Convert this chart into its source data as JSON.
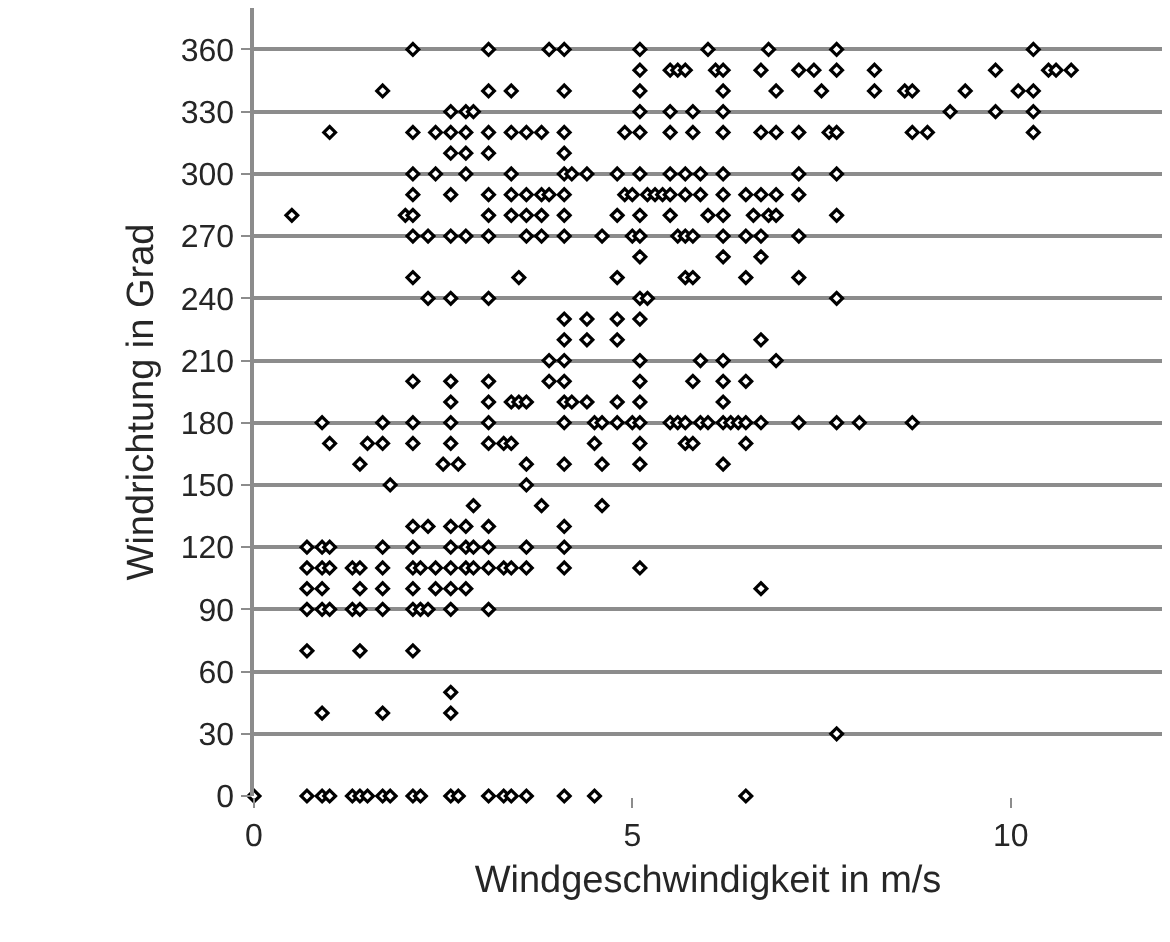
{
  "chart_data": {
    "type": "scatter",
    "xlabel": "Windgeschwindigkeit in m/s",
    "ylabel": "Windrichtung in Grad",
    "xlim": [
      0,
      12
    ],
    "xticks": [
      0,
      5,
      10
    ],
    "ylim": [
      0,
      380
    ],
    "yticks": [
      0,
      30,
      60,
      90,
      120,
      150,
      180,
      210,
      240,
      270,
      300,
      330,
      360
    ],
    "grid": "y",
    "marker": "diamond",
    "series": [
      {
        "color": "#000000",
        "x": [
          2.1,
          3.1,
          3.9,
          4.1,
          5.1,
          6.0,
          6.8,
          7.7,
          10.3,
          5.1,
          5.5,
          5.6,
          5.7,
          6.1,
          6.2,
          6.7,
          7.2,
          7.4,
          7.7,
          8.2,
          9.8,
          10.5,
          10.6,
          10.8,
          1.7,
          3.1,
          3.4,
          4.1,
          5.1,
          6.2,
          6.9,
          7.5,
          8.2,
          8.6,
          8.7,
          9.4,
          10.1,
          10.3,
          2.6,
          2.8,
          2.9,
          5.1,
          5.5,
          5.8,
          6.2,
          9.2,
          9.8,
          10.3,
          1.0,
          2.1,
          2.4,
          2.6,
          2.8,
          3.1,
          3.4,
          3.6,
          3.8,
          4.1,
          4.9,
          5.1,
          5.5,
          5.8,
          6.2,
          6.7,
          6.9,
          7.2,
          7.6,
          7.7,
          8.7,
          8.9,
          10.3,
          2.6,
          2.8,
          3.1,
          4.1,
          2.1,
          2.4,
          2.8,
          3.4,
          4.1,
          4.2,
          4.4,
          4.8,
          5.1,
          5.5,
          5.7,
          5.9,
          6.2,
          7.2,
          7.7,
          2.1,
          2.6,
          3.1,
          3.4,
          3.6,
          3.8,
          3.9,
          4.1,
          4.9,
          5.0,
          5.2,
          5.3,
          5.4,
          5.5,
          5.7,
          5.9,
          6.2,
          6.5,
          6.7,
          6.9,
          7.2,
          0.5,
          2.0,
          2.1,
          3.1,
          3.4,
          3.6,
          3.8,
          4.1,
          4.8,
          5.1,
          5.5,
          6.0,
          6.2,
          6.6,
          6.8,
          6.9,
          7.7,
          2.1,
          2.3,
          2.6,
          2.8,
          3.1,
          3.6,
          3.8,
          4.1,
          4.6,
          5.0,
          5.1,
          5.6,
          5.7,
          5.8,
          6.2,
          6.5,
          6.7,
          7.2,
          5.1,
          6.2,
          6.7,
          2.1,
          3.5,
          4.8,
          5.7,
          5.8,
          6.5,
          7.2,
          2.3,
          2.6,
          3.1,
          5.1,
          5.2,
          7.7,
          4.1,
          4.4,
          4.8,
          5.1,
          4.1,
          4.4,
          4.8,
          6.7,
          3.9,
          4.1,
          5.1,
          5.9,
          6.2,
          6.9,
          2.1,
          2.6,
          3.1,
          3.9,
          4.1,
          5.1,
          5.8,
          6.2,
          6.5,
          2.6,
          3.1,
          3.4,
          3.5,
          3.6,
          4.1,
          4.2,
          4.4,
          4.8,
          5.1,
          6.2,
          0.9,
          1.7,
          2.1,
          2.6,
          3.1,
          4.1,
          4.5,
          4.6,
          4.8,
          5.0,
          5.1,
          5.5,
          5.6,
          5.7,
          5.9,
          6.0,
          6.2,
          6.3,
          6.4,
          6.5,
          6.7,
          7.2,
          7.7,
          8.0,
          8.7,
          1.0,
          1.5,
          1.7,
          2.1,
          2.6,
          3.1,
          3.3,
          3.4,
          4.5,
          5.1,
          5.7,
          5.8,
          6.5,
          1.4,
          2.5,
          2.7,
          3.6,
          4.1,
          4.6,
          5.1,
          6.2,
          1.8,
          3.6,
          2.9,
          3.8,
          4.6,
          2.1,
          2.3,
          2.6,
          2.8,
          3.1,
          4.1,
          0.7,
          0.9,
          1.0,
          1.7,
          2.1,
          2.6,
          2.8,
          2.9,
          3.1,
          3.6,
          4.1,
          0.7,
          0.9,
          1.0,
          1.3,
          1.4,
          1.7,
          2.1,
          2.2,
          2.4,
          2.6,
          2.8,
          2.9,
          3.1,
          3.3,
          3.4,
          3.6,
          4.1,
          5.1,
          0.7,
          0.9,
          1.4,
          1.7,
          2.1,
          2.4,
          2.6,
          2.8,
          6.7,
          0.7,
          0.9,
          1.0,
          1.3,
          1.4,
          1.7,
          2.1,
          2.2,
          2.3,
          2.6,
          3.1,
          0.7,
          1.4,
          2.1,
          2.6,
          0.9,
          1.7,
          2.6,
          7.7,
          0,
          0.7,
          0.9,
          1.0,
          1.3,
          1.4,
          1.5,
          1.7,
          1.8,
          2.1,
          2.2,
          2.6,
          2.7,
          3.1,
          3.3,
          3.4,
          3.6,
          4.1,
          4.5,
          6.5
        ],
        "values": [
          360,
          360,
          360,
          360,
          360,
          360,
          360,
          360,
          360,
          350,
          350,
          350,
          350,
          350,
          350,
          350,
          350,
          350,
          350,
          350,
          350,
          350,
          350,
          350,
          340,
          340,
          340,
          340,
          340,
          340,
          340,
          340,
          340,
          340,
          340,
          340,
          340,
          340,
          330,
          330,
          330,
          330,
          330,
          330,
          330,
          330,
          330,
          330,
          320,
          320,
          320,
          320,
          320,
          320,
          320,
          320,
          320,
          320,
          320,
          320,
          320,
          320,
          320,
          320,
          320,
          320,
          320,
          320,
          320,
          320,
          320,
          310,
          310,
          310,
          310,
          300,
          300,
          300,
          300,
          300,
          300,
          300,
          300,
          300,
          300,
          300,
          300,
          300,
          300,
          300,
          290,
          290,
          290,
          290,
          290,
          290,
          290,
          290,
          290,
          290,
          290,
          290,
          290,
          290,
          290,
          290,
          290,
          290,
          290,
          290,
          290,
          280,
          280,
          280,
          280,
          280,
          280,
          280,
          280,
          280,
          280,
          280,
          280,
          280,
          280,
          280,
          280,
          280,
          270,
          270,
          270,
          270,
          270,
          270,
          270,
          270,
          270,
          270,
          270,
          270,
          270,
          270,
          270,
          270,
          270,
          270,
          260,
          260,
          260,
          250,
          250,
          250,
          250,
          250,
          250,
          250,
          240,
          240,
          240,
          240,
          240,
          240,
          230,
          230,
          230,
          230,
          220,
          220,
          220,
          220,
          210,
          210,
          210,
          210,
          210,
          210,
          200,
          200,
          200,
          200,
          200,
          200,
          200,
          200,
          200,
          190,
          190,
          190,
          190,
          190,
          190,
          190,
          190,
          190,
          190,
          190,
          180,
          180,
          180,
          180,
          180,
          180,
          180,
          180,
          180,
          180,
          180,
          180,
          180,
          180,
          180,
          180,
          180,
          180,
          180,
          180,
          180,
          180,
          180,
          180,
          180,
          170,
          170,
          170,
          170,
          170,
          170,
          170,
          170,
          170,
          170,
          170,
          170,
          170,
          160,
          160,
          160,
          160,
          160,
          160,
          160,
          160,
          150,
          150,
          140,
          140,
          140,
          130,
          130,
          130,
          130,
          130,
          130,
          120,
          120,
          120,
          120,
          120,
          120,
          120,
          120,
          120,
          120,
          120,
          110,
          110,
          110,
          110,
          110,
          110,
          110,
          110,
          110,
          110,
          110,
          110,
          110,
          110,
          110,
          110,
          110,
          110,
          100,
          100,
          100,
          100,
          100,
          100,
          100,
          100,
          100,
          90,
          90,
          90,
          90,
          90,
          90,
          90,
          90,
          90,
          90,
          90,
          70,
          70,
          70,
          50,
          40,
          40,
          40,
          30,
          0,
          0,
          0,
          0,
          0,
          0,
          0,
          0,
          0,
          0,
          0,
          0,
          0,
          0,
          0,
          0,
          0,
          0,
          0,
          0
        ]
      }
    ]
  }
}
